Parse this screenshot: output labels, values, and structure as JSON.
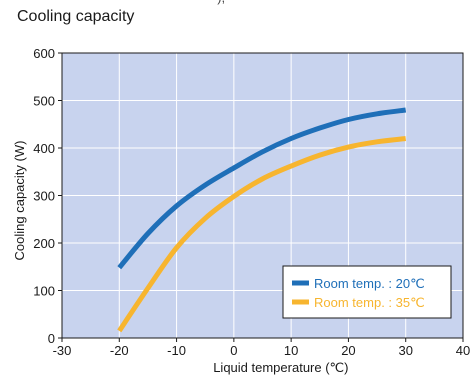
{
  "top_cropped_text": "–),",
  "heading": "Cooling capacity",
  "colors": {
    "plot_background": "#c8d3ee",
    "grid": "#ffffff",
    "room20": "#1f6fb8",
    "room35": "#f7b52f"
  },
  "chart_data": {
    "type": "line",
    "title": "",
    "xlabel": "Liquid temperature (℃)",
    "ylabel": "Cooling capacity (W)",
    "xlim": [
      -30,
      40
    ],
    "ylim": [
      0,
      600
    ],
    "x_ticks": [
      -30,
      -20,
      -10,
      0,
      10,
      20,
      30,
      40
    ],
    "y_ticks": [
      0,
      100,
      200,
      300,
      400,
      500,
      600
    ],
    "grid": true,
    "legend_position": "bottom-right",
    "series": [
      {
        "name": "Room temp. : 20℃",
        "color_key": "room20",
        "x": [
          -20,
          -15,
          -10,
          -5,
          0,
          5,
          10,
          15,
          20,
          25,
          30
        ],
        "y": [
          148,
          220,
          278,
          322,
          358,
          392,
          420,
          442,
          460,
          472,
          480
        ]
      },
      {
        "name": "Room temp. : 35℃",
        "color_key": "room35",
        "x": [
          -20,
          -15,
          -10,
          -5,
          0,
          5,
          10,
          15,
          20,
          25,
          30
        ],
        "y": [
          15,
          105,
          190,
          252,
          298,
          335,
          362,
          385,
          402,
          413,
          420
        ]
      }
    ]
  }
}
